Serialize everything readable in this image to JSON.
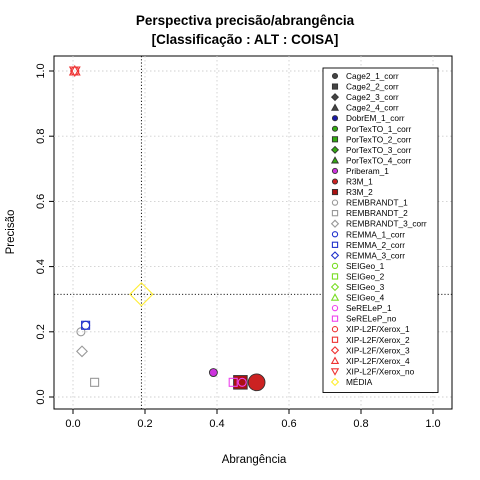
{
  "chart_data": {
    "type": "scatter",
    "title": "Perspectiva precisão/abrangência",
    "subtitle": "[Classificação : ALT : COISA]",
    "xlabel": "Abrangência",
    "ylabel": "Precisão",
    "xlim": [
      0,
      1
    ],
    "ylim": [
      0,
      1
    ],
    "xticks": [
      "0.0",
      "0.2",
      "0.4",
      "0.6",
      "0.8",
      "1.0"
    ],
    "yticks": [
      "0.0",
      "0.2",
      "0.4",
      "0.6",
      "0.8",
      "1.0"
    ],
    "grid": true,
    "legend_position": "right",
    "reference_lines": {
      "x": 0.19,
      "y": 0.315
    },
    "series": [
      {
        "name": "Cage2_1_corr",
        "color": "#444444",
        "shape": "circle",
        "filled": true,
        "points": []
      },
      {
        "name": "Cage2_2_corr",
        "color": "#444444",
        "shape": "square",
        "filled": true,
        "points": []
      },
      {
        "name": "Cage2_3_corr",
        "color": "#444444",
        "shape": "diamond",
        "filled": true,
        "points": []
      },
      {
        "name": "Cage2_4_corr",
        "color": "#444444",
        "shape": "triangle",
        "filled": true,
        "points": []
      },
      {
        "name": "DobrEM_1_corr",
        "color": "#1a1aa8",
        "shape": "circle",
        "filled": true,
        "points": []
      },
      {
        "name": "PorTexTO_1_corr",
        "color": "#33aa11",
        "shape": "circle",
        "filled": true,
        "points": []
      },
      {
        "name": "PorTexTO_2_corr",
        "color": "#33aa11",
        "shape": "square",
        "filled": true,
        "points": []
      },
      {
        "name": "PorTexTO_3_corr",
        "color": "#33aa11",
        "shape": "diamond",
        "filled": true,
        "points": []
      },
      {
        "name": "PorTexTO_4_corr",
        "color": "#33aa11",
        "shape": "triangle",
        "filled": true,
        "points": []
      },
      {
        "name": "Priberam_1",
        "color": "#cc33dd",
        "shape": "circle",
        "filled": true,
        "points": [
          {
            "x": 0.39,
            "y": 0.075,
            "size": 1
          }
        ]
      },
      {
        "name": "R3M_1",
        "color": "#cc2222",
        "shape": "circle",
        "filled": true,
        "points": [
          {
            "x": 0.51,
            "y": 0.045,
            "size": 2.1
          }
        ]
      },
      {
        "name": "R3M_2",
        "color": "#aa1111",
        "shape": "square",
        "filled": true,
        "points": [
          {
            "x": 0.465,
            "y": 0.045,
            "size": 1.7
          }
        ]
      },
      {
        "name": "REMBRANDT_1",
        "color": "#999999",
        "shape": "circle",
        "filled": false,
        "points": [
          {
            "x": 0.022,
            "y": 0.2,
            "size": 1
          }
        ]
      },
      {
        "name": "REMBRANDT_2",
        "color": "#999999",
        "shape": "square",
        "filled": false,
        "points": [
          {
            "x": 0.06,
            "y": 0.045,
            "size": 1
          }
        ]
      },
      {
        "name": "REMBRANDT_3_corr",
        "color": "#999999",
        "shape": "diamond",
        "filled": false,
        "points": [
          {
            "x": 0.025,
            "y": 0.14,
            "size": 1
          }
        ]
      },
      {
        "name": "REMMA_1_corr",
        "color": "#2233cc",
        "shape": "circle",
        "filled": false,
        "points": [
          {
            "x": 0.035,
            "y": 0.22,
            "size": 1
          }
        ]
      },
      {
        "name": "REMMA_2_corr",
        "color": "#2233cc",
        "shape": "square",
        "filled": false,
        "points": [
          {
            "x": 0.035,
            "y": 0.22,
            "size": 1
          }
        ]
      },
      {
        "name": "REMMA_3_corr",
        "color": "#2233cc",
        "shape": "diamond",
        "filled": false,
        "points": []
      },
      {
        "name": "SEIGeo_1",
        "color": "#77dd22",
        "shape": "circle",
        "filled": false,
        "points": []
      },
      {
        "name": "SEIGeo_2",
        "color": "#77dd22",
        "shape": "square",
        "filled": false,
        "points": []
      },
      {
        "name": "SEIGeo_3",
        "color": "#77dd22",
        "shape": "diamond",
        "filled": false,
        "points": []
      },
      {
        "name": "SEIGeo_4",
        "color": "#77dd22",
        "shape": "triangle",
        "filled": false,
        "points": []
      },
      {
        "name": "SeRELeP_1",
        "color": "#ee44ee",
        "shape": "circle",
        "filled": false,
        "points": [
          {
            "x": 0.47,
            "y": 0.045,
            "size": 1
          }
        ]
      },
      {
        "name": "SeRELeP_no",
        "color": "#ee44ee",
        "shape": "square",
        "filled": false,
        "points": [
          {
            "x": 0.445,
            "y": 0.045,
            "size": 1
          }
        ]
      },
      {
        "name": "XIP-L2F/Xerox_1",
        "color": "#ee3333",
        "shape": "circle",
        "filled": false,
        "points": [
          {
            "x": 0.005,
            "y": 1.0,
            "size": 1
          }
        ]
      },
      {
        "name": "XIP-L2F/Xerox_2",
        "color": "#ee3333",
        "shape": "square",
        "filled": false,
        "points": []
      },
      {
        "name": "XIP-L2F/Xerox_3",
        "color": "#ee3333",
        "shape": "diamond",
        "filled": false,
        "points": []
      },
      {
        "name": "XIP-L2F/Xerox_4",
        "color": "#ee3333",
        "shape": "triangle",
        "filled": false,
        "points": [
          {
            "x": 0.005,
            "y": 1.0,
            "size": 1
          }
        ]
      },
      {
        "name": "XIP-L2F/Xerox_no",
        "color": "#ee3333",
        "shape": "triangle-down",
        "filled": false,
        "points": [
          {
            "x": 0.005,
            "y": 1.0,
            "size": 1
          }
        ]
      },
      {
        "name": "MÉDIA",
        "color": "#ffee33",
        "shape": "diamond",
        "filled": false,
        "points": [
          {
            "x": 0.19,
            "y": 0.315,
            "size": 2.2
          }
        ]
      }
    ]
  }
}
